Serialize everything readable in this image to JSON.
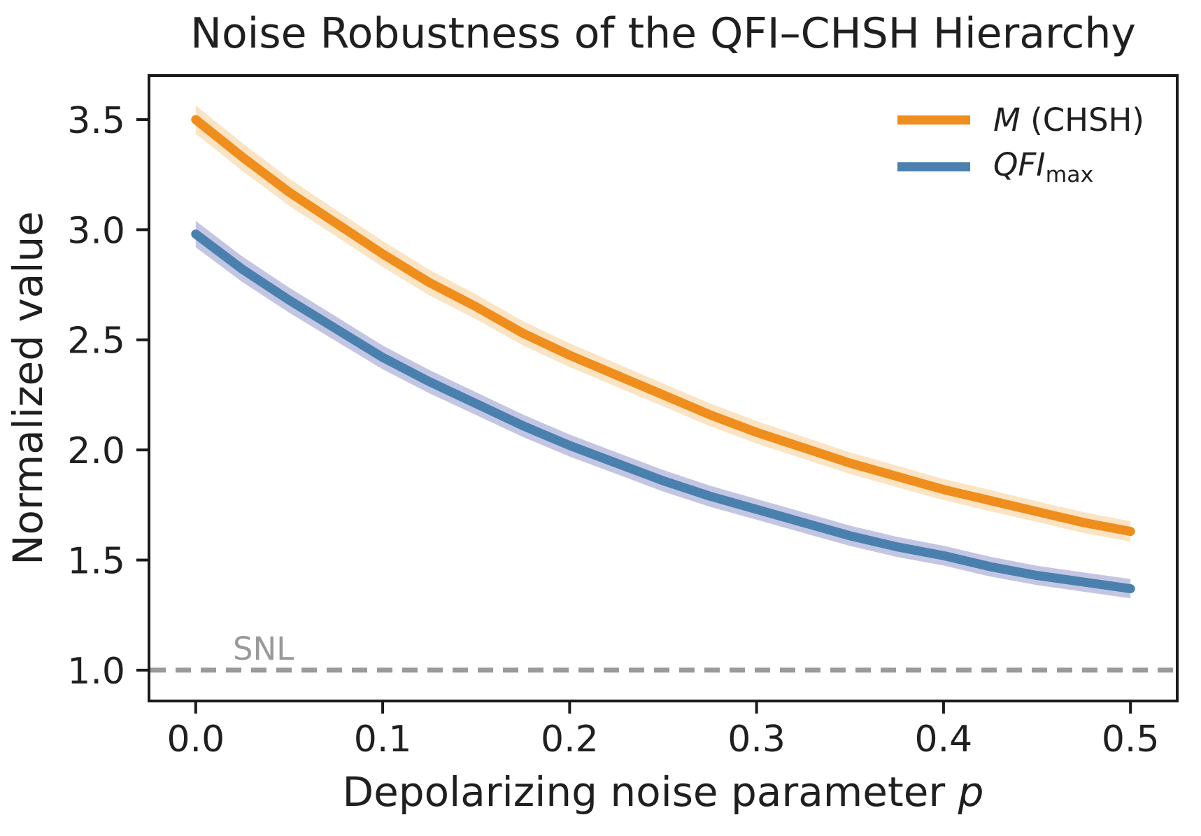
{
  "figure": {
    "title": "Noise Robustness of the QFI–CHSH Hierarchy",
    "ylabel": "Normalized value",
    "xlabel": {
      "text": "Depolarizing noise parameter ",
      "italic": "p"
    },
    "snl_label": "SNL",
    "colors": {
      "text": "#1f1f1f",
      "spine": "#1a1a1a",
      "reference_gray": "#9a9a9a",
      "m_chsh_line": "#ef8e1d",
      "m_chsh_band": "#fbe4c4",
      "qfi_line": "#4a80ae",
      "qfi_band": "#c3c6e3"
    }
  },
  "legend": {
    "items": [
      {
        "italic": "M",
        "rest": " (CHSH)",
        "sub": "",
        "color": "#ef8e1d"
      },
      {
        "italic": "QFI",
        "rest": "",
        "sub": "max",
        "color": "#4a80ae"
      }
    ]
  },
  "chart_data": {
    "type": "line",
    "title": "Noise Robustness of the QFI–CHSH Hierarchy",
    "xlabel": "Depolarizing noise parameter p",
    "ylabel": "Normalized value",
    "grid": false,
    "legend_position": "upper right",
    "xlim": [
      -0.025,
      0.525
    ],
    "ylim": [
      0.86,
      3.7
    ],
    "xticks": [
      0.0,
      0.1,
      0.2,
      0.3,
      0.4,
      0.5
    ],
    "xticklabels": [
      "0.0",
      "0.1",
      "0.2",
      "0.3",
      "0.4",
      "0.5"
    ],
    "yticks": [
      1.0,
      1.5,
      2.0,
      2.5,
      3.0,
      3.5
    ],
    "yticklabels": [
      "1.0",
      "1.5",
      "2.0",
      "2.5",
      "3.0",
      "3.5"
    ],
    "x": [
      0.0,
      0.025,
      0.05,
      0.075,
      0.1,
      0.125,
      0.15,
      0.175,
      0.2,
      0.225,
      0.25,
      0.275,
      0.3,
      0.325,
      0.35,
      0.375,
      0.4,
      0.425,
      0.45,
      0.475,
      0.5
    ],
    "series": [
      {
        "name": "M (CHSH)",
        "color": "#ef8e1d",
        "band_color": "#fbe4c4",
        "values": [
          3.5,
          3.33,
          3.17,
          3.03,
          2.89,
          2.76,
          2.65,
          2.53,
          2.43,
          2.34,
          2.25,
          2.16,
          2.08,
          2.01,
          1.94,
          1.88,
          1.82,
          1.77,
          1.72,
          1.67,
          1.63
        ],
        "band_halfwidth": [
          0.065,
          0.063,
          0.062,
          0.06,
          0.059,
          0.058,
          0.056,
          0.055,
          0.054,
          0.053,
          0.052,
          0.052,
          0.051,
          0.05,
          0.049,
          0.049,
          0.048,
          0.048,
          0.047,
          0.047,
          0.046
        ]
      },
      {
        "name": "QFI_max",
        "color": "#4a80ae",
        "band_color": "#c3c6e3",
        "values": [
          2.98,
          2.82,
          2.68,
          2.55,
          2.42,
          2.31,
          2.21,
          2.11,
          2.02,
          1.94,
          1.86,
          1.79,
          1.73,
          1.67,
          1.61,
          1.56,
          1.52,
          1.47,
          1.43,
          1.4,
          1.37
        ],
        "band_halfwidth": [
          0.06,
          0.058,
          0.057,
          0.056,
          0.054,
          0.053,
          0.052,
          0.051,
          0.05,
          0.049,
          0.049,
          0.048,
          0.047,
          0.047,
          0.046,
          0.046,
          0.045,
          0.045,
          0.044,
          0.044,
          0.044
        ]
      }
    ],
    "reference_line": {
      "label": "SNL",
      "y": 1.0,
      "color": "#9a9a9a",
      "style": "dashed"
    }
  }
}
